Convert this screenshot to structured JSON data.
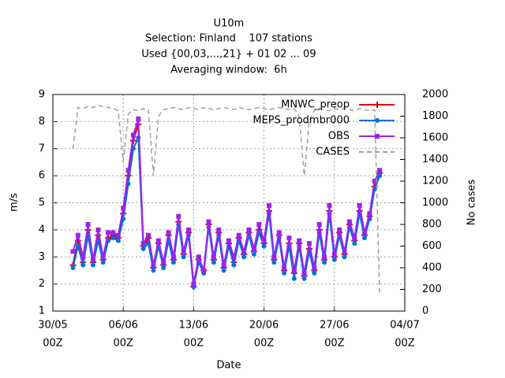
{
  "chart_data": {
    "type": "line",
    "title": "U10m",
    "subtitle": [
      "Selection: Finland    107 stations",
      "Used {00,03,...,21} + 01 02 ... 09",
      "Averaging window:  6h"
    ],
    "xlabel": "Date",
    "ylabel": "m/s",
    "y2label": "No cases",
    "xlim": [
      0,
      35
    ],
    "ylim": [
      1,
      9
    ],
    "y2lim": [
      0,
      2000
    ],
    "xticks": [
      {
        "value": 0,
        "label": [
          "30/05",
          "00Z"
        ]
      },
      {
        "value": 7,
        "label": [
          "06/06",
          "00Z"
        ]
      },
      {
        "value": 14,
        "label": [
          "13/06",
          "00Z"
        ]
      },
      {
        "value": 21,
        "label": [
          "20/06",
          "00Z"
        ]
      },
      {
        "value": 28,
        "label": [
          "27/06",
          "00Z"
        ]
      },
      {
        "value": 35,
        "label": [
          "04/07",
          "00Z"
        ]
      }
    ],
    "yticks": [
      1,
      2,
      3,
      4,
      5,
      6,
      7,
      8,
      9
    ],
    "y2ticks": [
      0,
      200,
      400,
      600,
      800,
      1000,
      1200,
      1400,
      1600,
      1800,
      2000
    ],
    "grid": true,
    "legend": "upper right",
    "x": [
      2,
      2.5,
      3,
      3.5,
      4,
      4.5,
      5,
      5.5,
      6,
      6.5,
      7,
      7.5,
      8,
      8.5,
      9,
      9.5,
      10,
      10.5,
      11,
      11.5,
      12,
      12.5,
      13,
      13.5,
      14,
      14.5,
      15,
      15.5,
      16,
      16.5,
      17,
      17.5,
      18,
      18.5,
      19,
      19.5,
      20,
      20.5,
      21,
      21.5,
      22,
      22.5,
      23,
      23.5,
      24,
      24.5,
      25,
      25.5,
      26,
      26.5,
      27,
      27.5,
      28,
      28.5,
      29,
      29.5,
      30,
      30.5,
      31,
      31.5,
      32,
      32.5
    ],
    "series": [
      {
        "name": "MNWC_preop",
        "color": "#e00000",
        "marker": "plus",
        "values": [
          2.7,
          3.6,
          2.8,
          4.0,
          2.8,
          3.8,
          2.9,
          3.7,
          3.8,
          3.7,
          4.6,
          6.0,
          7.3,
          7.9,
          3.4,
          3.7,
          2.6,
          3.5,
          2.7,
          3.8,
          2.9,
          4.3,
          3.1,
          3.9,
          1.9,
          2.9,
          2.5,
          4.2,
          2.9,
          3.9,
          2.6,
          3.5,
          2.8,
          3.7,
          3.1,
          3.9,
          3.2,
          4.0,
          3.5,
          4.7,
          2.9,
          3.8,
          2.5,
          3.5,
          2.4,
          3.5,
          2.3,
          3.3,
          2.5,
          4.0,
          2.9,
          4.7,
          3.0,
          3.9,
          3.1,
          4.2,
          3.6,
          4.7,
          3.8,
          4.5,
          5.6,
          6.1
        ]
      },
      {
        "name": "MEPS_prodmbr000",
        "color": "#0070e0",
        "marker": "circle",
        "values": [
          2.6,
          3.4,
          2.7,
          3.8,
          2.7,
          3.6,
          2.8,
          3.6,
          3.7,
          3.6,
          4.4,
          5.7,
          7.0,
          7.4,
          3.3,
          3.5,
          2.5,
          3.4,
          2.6,
          3.6,
          2.8,
          4.2,
          3.0,
          3.8,
          1.9,
          2.8,
          2.4,
          4.1,
          2.8,
          3.8,
          2.5,
          3.4,
          2.7,
          3.6,
          3.0,
          3.8,
          3.1,
          3.9,
          3.4,
          4.6,
          2.8,
          3.7,
          2.4,
          3.4,
          2.2,
          3.4,
          2.2,
          3.2,
          2.4,
          3.9,
          2.8,
          4.6,
          2.9,
          3.8,
          3.0,
          4.1,
          3.5,
          4.6,
          3.7,
          4.4,
          5.5,
          6.0
        ]
      },
      {
        "name": "OBS",
        "color": "#a020f0",
        "marker": "square",
        "values": [
          3.2,
          3.8,
          3.0,
          4.2,
          2.9,
          4.0,
          3.0,
          3.9,
          3.9,
          3.8,
          4.8,
          6.2,
          7.5,
          8.1,
          3.5,
          3.8,
          2.7,
          3.6,
          2.8,
          3.9,
          3.0,
          4.5,
          3.2,
          4.0,
          2.0,
          3.0,
          2.5,
          4.3,
          3.0,
          4.0,
          2.7,
          3.6,
          3.0,
          3.8,
          3.2,
          4.0,
          3.3,
          4.2,
          3.6,
          4.9,
          3.0,
          3.9,
          2.6,
          3.7,
          2.5,
          3.6,
          2.4,
          3.5,
          2.6,
          4.2,
          3.0,
          4.9,
          3.1,
          4.0,
          3.2,
          4.3,
          3.7,
          4.9,
          3.9,
          4.6,
          5.8,
          6.2
        ]
      },
      {
        "name": "CASES",
        "color": "#a0a0a0",
        "axis": "y2",
        "dashed": true,
        "values": [
          1500,
          1880,
          1870,
          1890,
          1880,
          1900,
          1890,
          1880,
          1870,
          1850,
          1380,
          1820,
          1860,
          1850,
          1870,
          1860,
          1250,
          1800,
          1860,
          1870,
          1880,
          1870,
          1860,
          1880,
          1870,
          1860,
          1880,
          1870,
          1860,
          1870,
          1880,
          1870,
          1860,
          1880,
          1870,
          1860,
          1870,
          1880,
          1870,
          1860,
          1870,
          1880,
          1870,
          1860,
          1870,
          1800,
          1250,
          1750,
          1860,
          1870,
          1860,
          1850,
          1870,
          1860,
          1870,
          1860,
          1850,
          1870,
          1860,
          1850,
          1860,
          150
        ]
      }
    ]
  }
}
